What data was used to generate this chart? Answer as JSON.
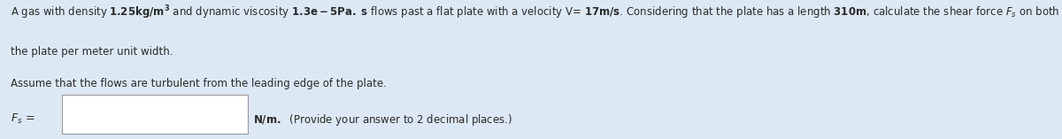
{
  "bg_color": "#dce9f5",
  "text_color": "#2a2a2a",
  "font_size_main": 8.5,
  "font_size_label": 9.0,
  "line1_normal_start": "A gas with density ",
  "line1_bold1": "1.25kg/m",
  "line1_super": "3",
  "line1_mid": " and dynamic viscosity ",
  "line1_bold2": "1.3e – 5Pa. s",
  "line1_end": " flows past a flat plate with a velocity V= ",
  "line1_bold3": "17m/s",
  "line1_cont": ". Considering that the plate has a length ",
  "line1_bold4": "310m",
  "line1_tail": ", calculate the shear force ",
  "line1_Fs": "F",
  "line1_s": "s",
  "line1_final": " on both sides of",
  "line2": "the plate per meter unit width.",
  "line3": "Assume that the flows are turbulent from the leading edge of the plate.",
  "label_italic": "F",
  "label_sub": "s",
  "label_eq": " =",
  "unit_text": "N/m.",
  "hint_text": "  (Provide your answer to 2 decimal places.)"
}
